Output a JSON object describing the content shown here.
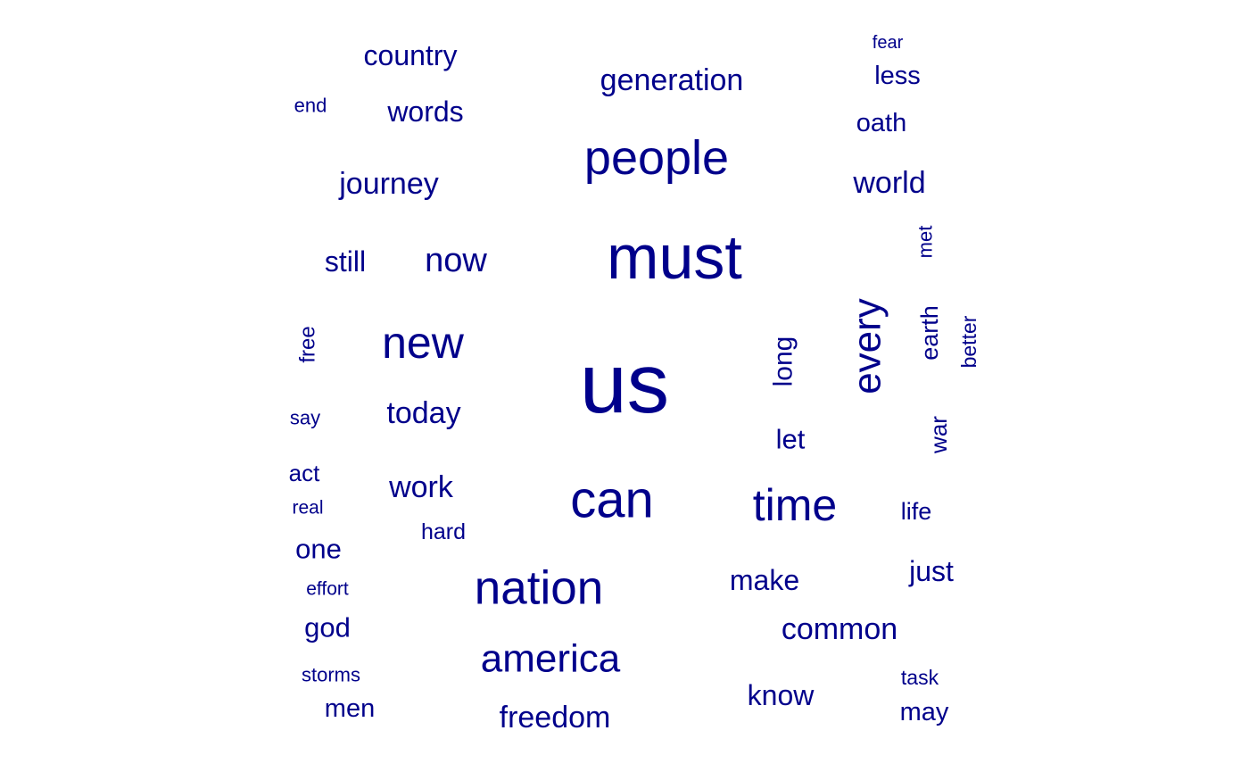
{
  "word_color": "#00008B",
  "words": [
    {
      "text": "us",
      "weight": 95,
      "rotated": false
    },
    {
      "text": "must",
      "weight": 70,
      "rotated": false
    },
    {
      "text": "people",
      "weight": 54,
      "rotated": false
    },
    {
      "text": "can",
      "weight": 58,
      "rotated": false
    },
    {
      "text": "nation",
      "weight": 53,
      "rotated": false
    },
    {
      "text": "new",
      "weight": 50,
      "rotated": false
    },
    {
      "text": "time",
      "weight": 50,
      "rotated": false
    },
    {
      "text": "every",
      "weight": 44,
      "rotated": true
    },
    {
      "text": "america",
      "weight": 44,
      "rotated": false
    },
    {
      "text": "now",
      "weight": 38,
      "rotated": false
    },
    {
      "text": "generation",
      "weight": 34,
      "rotated": false
    },
    {
      "text": "world",
      "weight": 34,
      "rotated": false
    },
    {
      "text": "journey",
      "weight": 34,
      "rotated": false
    },
    {
      "text": "freedom",
      "weight": 34,
      "rotated": false
    },
    {
      "text": "work",
      "weight": 34,
      "rotated": false
    },
    {
      "text": "today",
      "weight": 34,
      "rotated": false
    },
    {
      "text": "common",
      "weight": 34,
      "rotated": false
    },
    {
      "text": "country",
      "weight": 32,
      "rotated": false
    },
    {
      "text": "words",
      "weight": 32,
      "rotated": false
    },
    {
      "text": "still",
      "weight": 32,
      "rotated": false
    },
    {
      "text": "make",
      "weight": 32,
      "rotated": false
    },
    {
      "text": "know",
      "weight": 32,
      "rotated": false
    },
    {
      "text": "just",
      "weight": 32,
      "rotated": false
    },
    {
      "text": "god",
      "weight": 31,
      "rotated": false
    },
    {
      "text": "one",
      "weight": 31,
      "rotated": false
    },
    {
      "text": "let",
      "weight": 31,
      "rotated": false
    },
    {
      "text": "long",
      "weight": 30,
      "rotated": true
    },
    {
      "text": "oath",
      "weight": 29,
      "rotated": false
    },
    {
      "text": "less",
      "weight": 29,
      "rotated": false
    },
    {
      "text": "may",
      "weight": 29,
      "rotated": false
    },
    {
      "text": "men",
      "weight": 29,
      "rotated": false
    },
    {
      "text": "earth",
      "weight": 27,
      "rotated": true
    },
    {
      "text": "life",
      "weight": 27,
      "rotated": false
    },
    {
      "text": "war",
      "weight": 26,
      "rotated": true
    },
    {
      "text": "act",
      "weight": 26,
      "rotated": false
    },
    {
      "text": "hard",
      "weight": 25,
      "rotated": false
    },
    {
      "text": "free",
      "weight": 24,
      "rotated": true
    },
    {
      "text": "better",
      "weight": 23,
      "rotated": true
    },
    {
      "text": "task",
      "weight": 23,
      "rotated": false
    },
    {
      "text": "end",
      "weight": 22,
      "rotated": false
    },
    {
      "text": "say",
      "weight": 22,
      "rotated": false
    },
    {
      "text": "storms",
      "weight": 22,
      "rotated": false
    },
    {
      "text": "met",
      "weight": 22,
      "rotated": true
    },
    {
      "text": "effort",
      "weight": 21,
      "rotated": false
    },
    {
      "text": "real",
      "weight": 21,
      "rotated": false
    },
    {
      "text": "fear",
      "weight": 20,
      "rotated": false
    }
  ]
}
